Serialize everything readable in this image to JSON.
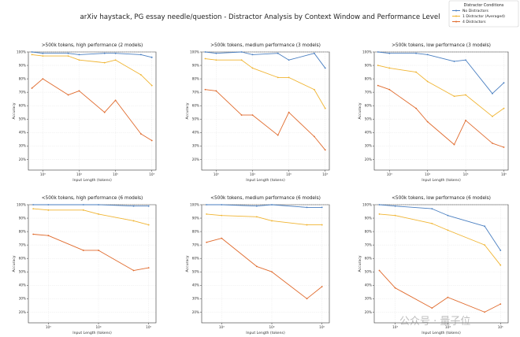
{
  "figure_title": "arXiv haystack, PG essay needle/question - Distractor Analysis by Context Window and Performance Level",
  "legend": {
    "title": "Distractor Conditions",
    "entries": [
      {
        "name": "No Distractors",
        "color": "#4a7fc1"
      },
      {
        "name": "1 Distractor (Averaged)",
        "color": "#f0b431"
      },
      {
        "name": "4 Distractors",
        "color": "#e06a2c"
      }
    ]
  },
  "watermark": "公众号 · 量子位",
  "chart_data": [
    {
      "type": "line",
      "title": ">500k tokens, high performance (2 models)",
      "xlabel": "Input Length (tokens)",
      "ylabel": "Accuracy",
      "xscale": "log",
      "xlim": [
        400,
        1300000
      ],
      "ylim": [
        0.12,
        1.0
      ],
      "xticks": [
        {
          "v": 1000,
          "label": "10³"
        },
        {
          "v": 10000,
          "label": "10⁴"
        },
        {
          "v": 100000,
          "label": "10⁵"
        },
        {
          "v": 1000000,
          "label": "10⁶"
        }
      ],
      "yticks": [
        0.2,
        0.3,
        0.4,
        0.5,
        0.6,
        0.7,
        0.8,
        0.9,
        1.0
      ],
      "ytick_labels": [
        "20%",
        "30%",
        "40%",
        "50%",
        "60%",
        "70%",
        "80%",
        "90%",
        "100%"
      ],
      "grid": true,
      "x": [
        500,
        1000,
        5000,
        10000,
        50000,
        100000,
        500000,
        1000000
      ],
      "series": [
        {
          "name": "No Distractors",
          "values": [
            1.0,
            0.99,
            0.99,
            0.98,
            0.99,
            0.99,
            0.98,
            0.96
          ]
        },
        {
          "name": "1 Distractor (Averaged)",
          "values": [
            0.98,
            0.97,
            0.97,
            0.94,
            0.92,
            0.94,
            0.83,
            0.75
          ]
        },
        {
          "name": "4 Distractors",
          "values": [
            0.73,
            0.8,
            0.68,
            0.71,
            0.55,
            0.64,
            0.39,
            0.34
          ]
        }
      ]
    },
    {
      "type": "line",
      "title": ">500k tokens, medium performance (3 models)",
      "xlabel": "Input Length (tokens)",
      "ylabel": "Accuracy",
      "xscale": "log",
      "xlim": [
        400,
        1300000
      ],
      "ylim": [
        0.12,
        1.0
      ],
      "xticks": [
        {
          "v": 1000,
          "label": "10³"
        },
        {
          "v": 10000,
          "label": "10⁴"
        },
        {
          "v": 100000,
          "label": "10⁵"
        },
        {
          "v": 1000000,
          "label": "10⁶"
        }
      ],
      "yticks": [
        0.2,
        0.3,
        0.4,
        0.5,
        0.6,
        0.7,
        0.8,
        0.9,
        1.0
      ],
      "ytick_labels": [
        "20%",
        "30%",
        "40%",
        "50%",
        "60%",
        "70%",
        "80%",
        "90%",
        "100%"
      ],
      "grid": true,
      "x": [
        500,
        1000,
        5000,
        10000,
        50000,
        100000,
        500000,
        1000000
      ],
      "series": [
        {
          "name": "No Distractors",
          "values": [
            1.0,
            0.99,
            1.0,
            0.98,
            0.99,
            0.94,
            0.99,
            0.88
          ]
        },
        {
          "name": "1 Distractor (Averaged)",
          "values": [
            0.95,
            0.94,
            0.94,
            0.88,
            0.81,
            0.81,
            0.72,
            0.58
          ]
        },
        {
          "name": "4 Distractors",
          "values": [
            0.72,
            0.71,
            0.53,
            0.53,
            0.38,
            0.55,
            0.37,
            0.27
          ]
        }
      ]
    },
    {
      "type": "line",
      "title": ">500k tokens, low performance (3 models)",
      "xlabel": "Input Length (tokens)",
      "ylabel": "Accuracy",
      "xscale": "log",
      "xlim": [
        400,
        1300000
      ],
      "ylim": [
        0.12,
        1.0
      ],
      "xticks": [
        {
          "v": 1000,
          "label": "10³"
        },
        {
          "v": 10000,
          "label": "10⁴"
        },
        {
          "v": 100000,
          "label": "10⁵"
        },
        {
          "v": 1000000,
          "label": "10⁶"
        }
      ],
      "yticks": [
        0.2,
        0.3,
        0.4,
        0.5,
        0.6,
        0.7,
        0.8,
        0.9,
        1.0
      ],
      "ytick_labels": [
        "20%",
        "30%",
        "40%",
        "50%",
        "60%",
        "70%",
        "80%",
        "90%",
        "100%"
      ],
      "grid": true,
      "x": [
        500,
        1000,
        5000,
        10000,
        50000,
        100000,
        500000,
        1000000
      ],
      "series": [
        {
          "name": "No Distractors",
          "values": [
            1.0,
            0.99,
            0.99,
            0.98,
            0.93,
            0.94,
            0.69,
            0.77
          ]
        },
        {
          "name": "1 Distractor (Averaged)",
          "values": [
            0.9,
            0.88,
            0.85,
            0.78,
            0.67,
            0.68,
            0.52,
            0.58
          ]
        },
        {
          "name": "4 Distractors",
          "values": [
            0.75,
            0.72,
            0.58,
            0.48,
            0.31,
            0.49,
            0.32,
            0.29
          ]
        }
      ]
    },
    {
      "type": "line",
      "title": "<500k tokens, high performance (6 models)",
      "xlabel": "Input Length (tokens)",
      "ylabel": "Accuracy",
      "xscale": "log",
      "xlim": [
        400,
        140000
      ],
      "ylim": [
        0.12,
        1.0
      ],
      "xticks": [
        {
          "v": 1000,
          "label": "10³"
        },
        {
          "v": 10000,
          "label": "10⁴"
        },
        {
          "v": 100000,
          "label": "10⁵"
        }
      ],
      "yticks": [
        0.2,
        0.3,
        0.4,
        0.5,
        0.6,
        0.7,
        0.8,
        0.9,
        1.0
      ],
      "ytick_labels": [
        "20%",
        "30%",
        "40%",
        "50%",
        "60%",
        "70%",
        "80%",
        "90%",
        "100%"
      ],
      "grid": true,
      "x": [
        500,
        1000,
        5000,
        10000,
        50000,
        100000
      ],
      "series": [
        {
          "name": "No Distractors",
          "values": [
            1.0,
            1.0,
            1.0,
            1.0,
            0.99,
            0.99
          ]
        },
        {
          "name": "1 Distractor (Averaged)",
          "values": [
            0.97,
            0.96,
            0.96,
            0.93,
            0.88,
            0.85
          ]
        },
        {
          "name": "4 Distractors",
          "values": [
            0.78,
            0.77,
            0.66,
            0.66,
            0.51,
            0.53
          ]
        }
      ]
    },
    {
      "type": "line",
      "title": "<500k tokens, medium performance (6 models)",
      "xlabel": "Input Length (tokens)",
      "ylabel": "Accuracy",
      "xscale": "log",
      "xlim": [
        400,
        140000
      ],
      "ylim": [
        0.12,
        1.0
      ],
      "xticks": [
        {
          "v": 1000,
          "label": "10³"
        },
        {
          "v": 10000,
          "label": "10⁴"
        },
        {
          "v": 100000,
          "label": "10⁵"
        }
      ],
      "yticks": [
        0.2,
        0.3,
        0.4,
        0.5,
        0.6,
        0.7,
        0.8,
        0.9,
        1.0
      ],
      "ytick_labels": [
        "20%",
        "30%",
        "40%",
        "50%",
        "60%",
        "70%",
        "80%",
        "90%",
        "100%"
      ],
      "grid": true,
      "x": [
        500,
        1000,
        5000,
        10000,
        50000,
        100000
      ],
      "series": [
        {
          "name": "No Distractors",
          "values": [
            1.0,
            1.0,
            0.99,
            1.0,
            0.98,
            0.98
          ]
        },
        {
          "name": "1 Distractor (Averaged)",
          "values": [
            0.93,
            0.92,
            0.91,
            0.88,
            0.85,
            0.85
          ]
        },
        {
          "name": "4 Distractors",
          "values": [
            0.72,
            0.75,
            0.54,
            0.5,
            0.3,
            0.39
          ]
        }
      ]
    },
    {
      "type": "line",
      "title": "<500k tokens, low performance (6 models)",
      "xlabel": "Input Length (tokens)",
      "ylabel": "Accuracy",
      "xscale": "log",
      "xlim": [
        400,
        140000
      ],
      "ylim": [
        0.12,
        1.0
      ],
      "xticks": [
        {
          "v": 1000,
          "label": "10³"
        },
        {
          "v": 10000,
          "label": "10⁴"
        },
        {
          "v": 100000,
          "label": "10⁵"
        }
      ],
      "yticks": [
        0.2,
        0.3,
        0.4,
        0.5,
        0.6,
        0.7,
        0.8,
        0.9,
        1.0
      ],
      "ytick_labels": [
        "20%",
        "30%",
        "40%",
        "50%",
        "60%",
        "70%",
        "80%",
        "90%",
        "100%"
      ],
      "grid": true,
      "x": [
        500,
        1000,
        5000,
        10000,
        50000,
        100000
      ],
      "series": [
        {
          "name": "No Distractors",
          "values": [
            1.0,
            0.99,
            0.97,
            0.92,
            0.84,
            0.66
          ]
        },
        {
          "name": "1 Distractor (Averaged)",
          "values": [
            0.93,
            0.92,
            0.86,
            0.81,
            0.7,
            0.55
          ]
        },
        {
          "name": "4 Distractors",
          "values": [
            0.51,
            0.38,
            0.23,
            0.31,
            0.2,
            0.26
          ]
        }
      ]
    }
  ]
}
